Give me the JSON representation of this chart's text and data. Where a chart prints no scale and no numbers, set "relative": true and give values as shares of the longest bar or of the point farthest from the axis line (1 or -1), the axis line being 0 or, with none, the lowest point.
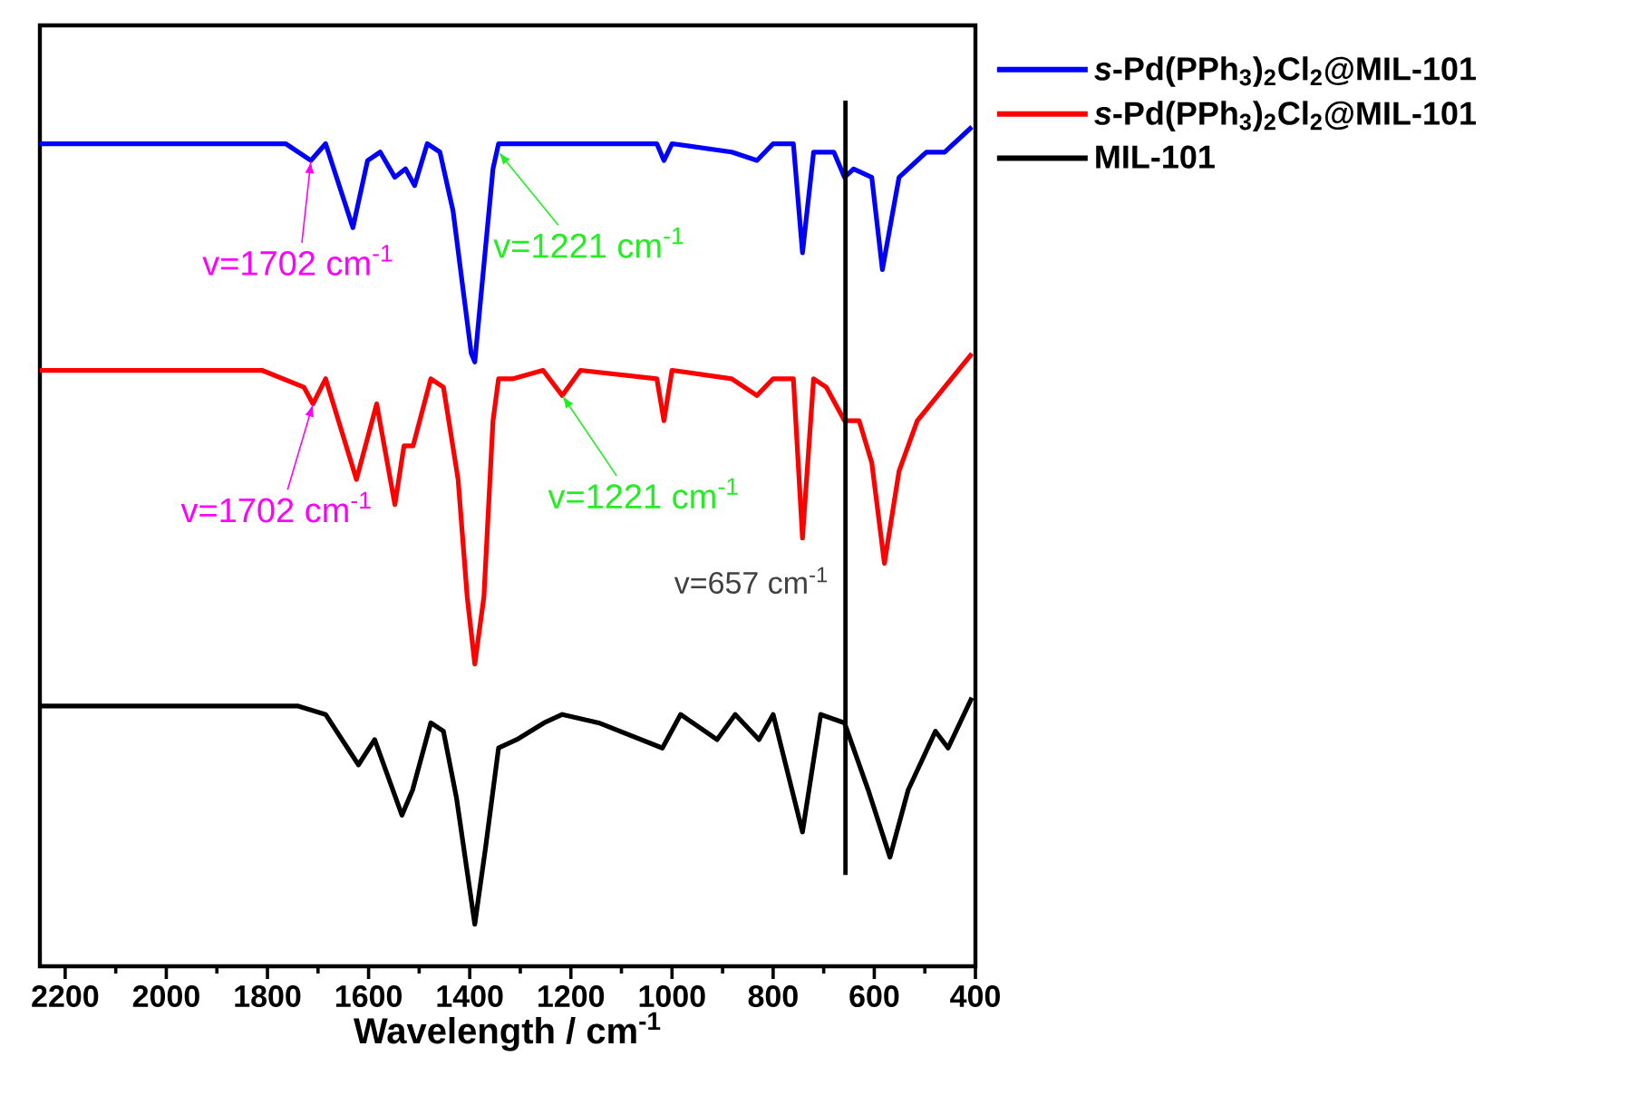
{
  "chart_data": {
    "type": "line",
    "relative": true,
    "xlabel": "Wavelength / cm$^{-1}$",
    "xlim": [
      2250,
      400
    ],
    "xticks": [
      2200,
      {
        "value": 2100,
        "label": null
      },
      2000,
      {
        "value": 1900,
        "label": null
      },
      1800,
      {
        "value": 1700,
        "label": null
      },
      1600,
      {
        "value": 1500,
        "label": null
      },
      1400,
      {
        "value": 1300,
        "label": null
      },
      1200,
      {
        "value": 1100,
        "label": null
      },
      1000,
      {
        "value": 900,
        "label": null
      },
      800,
      {
        "value": 700,
        "label": null
      },
      600,
      {
        "value": 500,
        "label": null
      },
      400
    ],
    "legend": "top right",
    "tick_labels": "x",
    "grid": false,
    "marker": "none",
    "line_style": "solid",
    "series": [
      {
        "name": "*s*-Pd(PPh$_{3}$)$_{2}$Cl$_{2}$@MIL-101",
        "color": "#0000ff",
        "x": [
          2250,
          1764,
          1714,
          1685,
          1631,
          1602,
          1577,
          1548,
          1527,
          1509,
          1484,
          1459,
          1433,
          1397,
          1390,
          1376,
          1354,
          1343,
          1100,
          1030,
          1016,
          1000,
          882,
          832,
          800,
          760,
          742,
          720,
          680,
          659,
          641,
          605,
          584,
          551,
          497,
          461,
          407
        ],
        "values": [
          0.98,
          0.98,
          0.96,
          0.98,
          0.88,
          0.96,
          0.97,
          0.94,
          0.95,
          0.93,
          0.98,
          0.97,
          0.9,
          0.73,
          0.72,
          0.81,
          0.95,
          0.98,
          0.98,
          0.98,
          0.96,
          0.98,
          0.97,
          0.96,
          0.98,
          0.98,
          0.85,
          0.97,
          0.97,
          0.94,
          0.95,
          0.94,
          0.83,
          0.94,
          0.97,
          0.97,
          1.0
        ]
      },
      {
        "name": "*s*-Pd(PPh$_{3}$)$_{2}$Cl$_{2}$@MIL-101",
        "color": "#ff0000",
        "x": [
          2250,
          1811,
          1728,
          1710,
          1685,
          1624,
          1584,
          1548,
          1530,
          1512,
          1477,
          1452,
          1423,
          1405,
          1390,
          1372,
          1354,
          1343,
          1314,
          1255,
          1217,
          1181,
          1030,
          1016,
          1000,
          882,
          832,
          800,
          760,
          742,
          720,
          695,
          659,
          630,
          605,
          580,
          551,
          515,
          461,
          407
        ],
        "values": [
          0.71,
          0.71,
          0.69,
          0.67,
          0.7,
          0.58,
          0.67,
          0.55,
          0.62,
          0.62,
          0.7,
          0.69,
          0.58,
          0.44,
          0.36,
          0.44,
          0.65,
          0.7,
          0.7,
          0.71,
          0.68,
          0.71,
          0.7,
          0.65,
          0.71,
          0.7,
          0.68,
          0.7,
          0.7,
          0.51,
          0.7,
          0.69,
          0.65,
          0.65,
          0.6,
          0.48,
          0.59,
          0.65,
          0.69,
          0.73
        ]
      },
      {
        "name": "MIL-101",
        "color": "#000000",
        "x": [
          2250,
          1739,
          1685,
          1620,
          1588,
          1534,
          1513,
          1477,
          1452,
          1426,
          1390,
          1369,
          1343,
          1307,
          1253,
          1217,
          1145,
          1019,
          983,
          911,
          875,
          828,
          800,
          742,
          706,
          659,
          612,
          569,
          533,
          479,
          454,
          407
        ],
        "values": [
          0.31,
          0.31,
          0.3,
          0.24,
          0.27,
          0.18,
          0.21,
          0.29,
          0.28,
          0.2,
          0.05,
          0.14,
          0.26,
          0.27,
          0.29,
          0.3,
          0.29,
          0.26,
          0.3,
          0.27,
          0.3,
          0.27,
          0.3,
          0.16,
          0.3,
          0.29,
          0.21,
          0.13,
          0.21,
          0.28,
          0.26,
          0.32
        ]
      }
    ],
    "ref_lines": [
      {
        "axis": "x",
        "value": 657,
        "label": "v=657 cm$^{-1}$",
        "color": "#000000"
      }
    ],
    "annotations": [
      {
        "text": "v=1702 cm$^{-1}$",
        "x": 1714,
        "y": 0.96
      },
      {
        "text": "v=1702 cm$^{-1}$",
        "x": 1710,
        "y": 0.67
      },
      {
        "text": "v=1221 cm$^{-1}$",
        "x": 1343,
        "y": 0.97
      },
      {
        "text": "v=1221 cm$^{-1}$",
        "x": 1217,
        "y": 0.68
      }
    ]
  }
}
